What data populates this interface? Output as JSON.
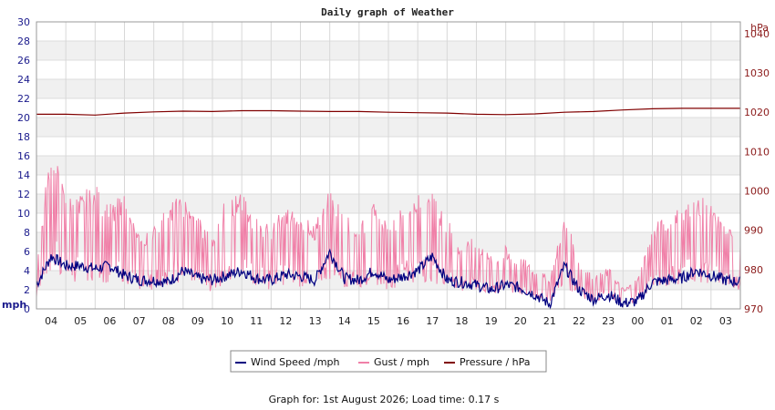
{
  "chart_data": {
    "type": "line",
    "title": "Daily graph of Weather",
    "footer": "Graph for: 1st August 2026; Load time: 0.17 s",
    "left_axis": {
      "unit": "mph",
      "ylim": [
        0,
        30
      ],
      "ticks": [
        "0",
        "2",
        "4",
        "6",
        "8",
        "10",
        "12",
        "14",
        "16",
        "18",
        "20",
        "22",
        "24",
        "26",
        "28",
        "30"
      ]
    },
    "right_axis": {
      "unit": "hPa",
      "ylim": [
        970,
        1043
      ],
      "ticks": [
        "970",
        "980",
        "990",
        "1000",
        "1010",
        "1020",
        "1030",
        "1040"
      ]
    },
    "x_axis": {
      "range_hours": [
        0,
        24
      ],
      "ticks": [
        {
          "label": "04",
          "hour": 0.5
        },
        {
          "label": "05",
          "hour": 1.5
        },
        {
          "label": "06",
          "hour": 2.5
        },
        {
          "label": "07",
          "hour": 3.5
        },
        {
          "label": "08",
          "hour": 4.5
        },
        {
          "label": "09",
          "hour": 5.5
        },
        {
          "label": "10",
          "hour": 6.5
        },
        {
          "label": "11",
          "hour": 7.5
        },
        {
          "label": "12",
          "hour": 8.5
        },
        {
          "label": "13",
          "hour": 9.5
        },
        {
          "label": "14",
          "hour": 10.5
        },
        {
          "label": "15",
          "hour": 11.5
        },
        {
          "label": "16",
          "hour": 12.5
        },
        {
          "label": "17",
          "hour": 13.5
        },
        {
          "label": "18",
          "hour": 14.5
        },
        {
          "label": "19",
          "hour": 15.5
        },
        {
          "label": "20",
          "hour": 16.5
        },
        {
          "label": "21",
          "hour": 17.5
        },
        {
          "label": "22",
          "hour": 18.5
        },
        {
          "label": "23",
          "hour": 19.5
        },
        {
          "label": "00",
          "hour": 20.5
        },
        {
          "label": "01",
          "hour": 21.5
        },
        {
          "label": "02",
          "hour": 22.5
        },
        {
          "label": "03",
          "hour": 23.5
        }
      ]
    },
    "grid": true,
    "legend_position": "bottom-center",
    "series": [
      {
        "name": "Wind Speed /mph",
        "axis": "left",
        "color": "#000080",
        "x": [
          0,
          0.5,
          1,
          1.5,
          2,
          2.5,
          3,
          3.5,
          4,
          4.5,
          5,
          5.5,
          6,
          6.5,
          7,
          7.5,
          8,
          8.5,
          9,
          9.5,
          10,
          10.5,
          11,
          11.5,
          12,
          12.5,
          13,
          13.5,
          14,
          14.5,
          15,
          15.5,
          16,
          16.5,
          17,
          17.5,
          18,
          18.5,
          19,
          19.5,
          20,
          20.5,
          21,
          21.5,
          22,
          22.5,
          23,
          23.5,
          24
        ],
        "y": [
          2.5,
          5.5,
          4.5,
          4.5,
          4.2,
          4.5,
          3.5,
          3.0,
          3.0,
          2.8,
          4.0,
          3.2,
          3.0,
          3.5,
          4.0,
          3.2,
          3.0,
          3.6,
          3.4,
          3.0,
          6.0,
          3.2,
          3.0,
          4.0,
          3.0,
          3.4,
          4.0,
          5.5,
          3.0,
          2.8,
          2.5,
          2.0,
          2.5,
          2.2,
          1.5,
          0.5,
          4.5,
          2.0,
          1.0,
          1.5,
          0.6,
          0.8,
          2.8,
          3.0,
          3.2,
          4.0,
          3.5,
          3.0,
          2.8
        ]
      },
      {
        "name": "Gust / mph",
        "axis": "left",
        "color": "#f080a8",
        "x": [
          0,
          0.5,
          1,
          1.5,
          2,
          2.5,
          3,
          3.5,
          4,
          4.5,
          5,
          5.5,
          6,
          6.5,
          7,
          7.5,
          8,
          8.5,
          9,
          9.5,
          10,
          10.5,
          11,
          11.5,
          12,
          12.5,
          13,
          13.5,
          14,
          14.5,
          15,
          15.5,
          16,
          16.5,
          17,
          17.5,
          18,
          18.5,
          19,
          19.5,
          20,
          20.5,
          21,
          21.5,
          22,
          22.5,
          23,
          23.5,
          24
        ],
        "y": [
          5,
          16,
          11,
          11,
          12,
          10,
          11,
          7,
          8,
          10,
          11,
          9,
          7,
          11,
          11,
          9,
          8,
          10,
          9,
          8,
          12,
          9,
          8,
          10,
          8,
          10,
          11,
          11,
          9,
          6,
          7,
          5,
          6,
          5,
          4,
          3,
          9,
          5,
          3,
          4,
          2,
          3,
          8,
          9,
          10,
          11,
          10,
          8,
          7
        ]
      },
      {
        "name": "Pressure / hPa",
        "axis": "right",
        "color": "#800000",
        "x": [
          0,
          1,
          2,
          3,
          4,
          5,
          6,
          7,
          8,
          9,
          10,
          11,
          12,
          13,
          14,
          15,
          16,
          17,
          18,
          19,
          20,
          21,
          22,
          23,
          24
        ],
        "y": [
          1019.5,
          1019.5,
          1019.3,
          1019.8,
          1020.1,
          1020.3,
          1020.2,
          1020.4,
          1020.4,
          1020.3,
          1020.2,
          1020.2,
          1020.0,
          1019.9,
          1019.8,
          1019.5,
          1019.4,
          1019.6,
          1020.0,
          1020.2,
          1020.6,
          1020.9,
          1021.0,
          1021.0,
          1021.0
        ]
      }
    ]
  }
}
